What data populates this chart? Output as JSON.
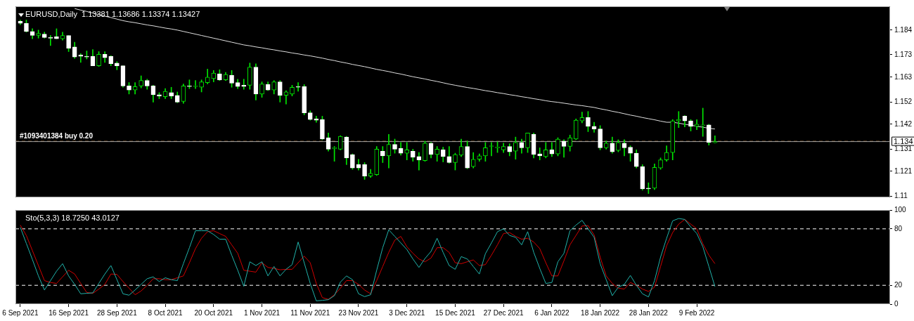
{
  "chart_data": [
    {
      "type": "candlestick",
      "title": "EURUSD,Daily  1.13381 1.13686 1.13374 1.13427",
      "tick_labels": "y",
      "categories": [
        null,
        null,
        null,
        null,
        null,
        null,
        null,
        null,
        null,
        null,
        null,
        null,
        null,
        null,
        null,
        null,
        null,
        null,
        null,
        null,
        null,
        null,
        null,
        null,
        null,
        null,
        null,
        null,
        null,
        null,
        null,
        null,
        null,
        null,
        null,
        null,
        null,
        null,
        null,
        null,
        null,
        null,
        null,
        null,
        null,
        null,
        null,
        null,
        null,
        null,
        null,
        null,
        null,
        null,
        null,
        null,
        null,
        null,
        null,
        null,
        null,
        null,
        null,
        null,
        null,
        null,
        null,
        null,
        null,
        null,
        null,
        null,
        null,
        null,
        null,
        null,
        null,
        null,
        null,
        null,
        null,
        null,
        null,
        null,
        null,
        null,
        null,
        null,
        null,
        null,
        null,
        null,
        null,
        null,
        null,
        null,
        null,
        null,
        null,
        null,
        null,
        null,
        null,
        null,
        null,
        null,
        null,
        null,
        null,
        null,
        null,
        null,
        null,
        null,
        null,
        null
      ],
      "ylim": [
        1.1094,
        1.1946
      ],
      "yticks": [
        1.184,
        1.173,
        1.163,
        1.152,
        1.142,
        1.131,
        1.121,
        1.11
      ],
      "series": [
        {
          "type": "candlestick",
          "color": "#00e600",
          "colors": [
            "#ffffff",
            "#ffffff",
            "#ffffff",
            "#00e600",
            "#ffffff",
            "#ffffff",
            "#ffffff",
            "#00e600",
            "#ffffff",
            "#ffffff",
            "#ffffff",
            "#ffffff",
            "#ffffff",
            "#00e600",
            "#ffffff",
            "#ffffff",
            "#ffffff",
            "#ffffff",
            "#ffffff",
            "#00e600",
            "#00e600",
            "#ffffff",
            "#ffffff",
            "#ffffff",
            "#00e600",
            "#ffffff",
            "#ffffff",
            "#00e600",
            "#ffffff",
            "#00e600",
            "#00e600",
            "#00e600",
            "#00e600",
            "#ffffff",
            "#00e600",
            "#ffffff",
            "#ffffff",
            "#ffffff",
            "#00e600",
            "#ffffff",
            "#00e600",
            "#ffffff",
            "#00e600",
            "#ffffff",
            "#00e600",
            "#00e600",
            "#ffffff",
            "#ffffff",
            "#ffffff",
            "#ffffff",
            "#ffffff",
            "#ffffff",
            "#00e600",
            "#00e600",
            "#ffffff",
            "#ffffff",
            "#ffffff",
            "#ffffff",
            "#00e600",
            "#00e600",
            "#ffffff",
            "#00e600",
            "#ffffff",
            "#ffffff",
            "#00e600",
            "#ffffff",
            "#ffffff",
            "#00e600",
            "#ffffff",
            "#00e600",
            "#ffffff",
            "#ffffff",
            "#00e600",
            "#00e600",
            "#ffffff",
            "#00e600",
            "#00e600",
            "#00e600",
            "#00e600",
            "#00e600",
            "#00e600",
            "#ffffff",
            "#00e600",
            "#ffffff",
            "#00e600",
            "#ffffff",
            "#ffffff",
            "#00e600",
            "#ffffff",
            "#00e600",
            "#ffffff",
            "#00e600",
            "#00e600",
            "#00e600",
            "#ffffff",
            "#ffffff",
            "#ffffff",
            "#00e600",
            "#ffffff",
            "#00e600",
            "#ffffff",
            "#ffffff",
            "#ffffff",
            "#ffffff",
            "#ffffff",
            "#00e600",
            "#00e600",
            "#00e600",
            "#00e600",
            "#00e600",
            "#ffffff",
            "#ffffff",
            "#00e600",
            "#00e600",
            "#ffffff",
            "#00e600"
          ],
          "ohlc": [
            [
              1.1879,
              1.1885,
              1.1864,
              1.187
            ],
            [
              1.187,
              1.1885,
              1.1831,
              1.1834
            ],
            [
              1.1834,
              1.1846,
              1.1801,
              1.1816
            ],
            [
              1.1816,
              1.184,
              1.1804,
              1.1825
            ],
            [
              1.1822,
              1.1831,
              1.1804,
              1.1807
            ],
            [
              1.1807,
              1.1816,
              1.1771,
              1.1804
            ],
            [
              1.181,
              1.1846,
              1.1801,
              1.1801
            ],
            [
              1.1801,
              1.1831,
              1.1795,
              1.1816
            ],
            [
              1.1816,
              1.1816,
              1.1744,
              1.1759
            ],
            [
              1.1765,
              1.1786,
              1.1714,
              1.172
            ],
            [
              1.1729,
              1.1735,
              1.1696,
              1.1723
            ],
            [
              1.1723,
              1.1747,
              1.1711,
              1.172
            ],
            [
              1.1723,
              1.1753,
              1.1681,
              1.1681
            ],
            [
              1.1681,
              1.1744,
              1.1678,
              1.1732
            ],
            [
              1.1732,
              1.1744,
              1.1696,
              1.1717
            ],
            [
              1.1723,
              1.1726,
              1.1681,
              1.169
            ],
            [
              1.1693,
              1.1699,
              1.1663,
              1.1681
            ],
            [
              1.1681,
              1.1681,
              1.1585,
              1.1591
            ],
            [
              1.1591,
              1.1606,
              1.1555,
              1.1573
            ],
            [
              1.1573,
              1.1606,
              1.1555,
              1.1588
            ],
            [
              1.1591,
              1.1636,
              1.1582,
              1.1615
            ],
            [
              1.1615,
              1.1621,
              1.1576,
              1.1591
            ],
            [
              1.1591,
              1.1594,
              1.1519,
              1.1552
            ],
            [
              1.1552,
              1.1561,
              1.1534,
              1.1546
            ],
            [
              1.1543,
              1.1579,
              1.1534,
              1.1567
            ],
            [
              1.1561,
              1.1585,
              1.1534,
              1.1546
            ],
            [
              1.1549,
              1.1564,
              1.1516,
              1.1519
            ],
            [
              1.1522,
              1.16,
              1.1513,
              1.1591
            ],
            [
              1.1591,
              1.1618,
              1.1579,
              1.1588
            ],
            [
              1.1588,
              1.1615,
              1.1579,
              1.1591
            ],
            [
              1.1585,
              1.1618,
              1.1564,
              1.1609
            ],
            [
              1.1606,
              1.1666,
              1.16,
              1.163
            ],
            [
              1.1624,
              1.166,
              1.1609,
              1.1648
            ],
            [
              1.1645,
              1.1663,
              1.1615,
              1.1618
            ],
            [
              1.1618,
              1.1651,
              1.1615,
              1.1642
            ],
            [
              1.1639,
              1.166,
              1.1585,
              1.1603
            ],
            [
              1.1606,
              1.1621,
              1.1579,
              1.1588
            ],
            [
              1.1594,
              1.1621,
              1.1576,
              1.1588
            ],
            [
              1.1594,
              1.1693,
              1.1576,
              1.1675
            ],
            [
              1.1675,
              1.169,
              1.1528,
              1.1555
            ],
            [
              1.1555,
              1.1609,
              1.154,
              1.16
            ],
            [
              1.1597,
              1.1609,
              1.157,
              1.1573
            ],
            [
              1.1573,
              1.1615,
              1.1555,
              1.1609
            ],
            [
              1.1609,
              1.1615,
              1.1519,
              1.1549
            ],
            [
              1.1549,
              1.157,
              1.151,
              1.1564
            ],
            [
              1.1555,
              1.1594,
              1.1546,
              1.1585
            ],
            [
              1.1588,
              1.1606,
              1.1567,
              1.1585
            ],
            [
              1.1588,
              1.1597,
              1.1462,
              1.1471
            ],
            [
              1.1471,
              1.148,
              1.1438,
              1.1441
            ],
            [
              1.1444,
              1.1456,
              1.1429,
              1.1438
            ],
            [
              1.1441,
              1.1456,
              1.1351,
              1.1354
            ],
            [
              1.136,
              1.1381,
              1.13,
              1.1309
            ],
            [
              1.1312,
              1.1321,
              1.1255,
              1.1312
            ],
            [
              1.1309,
              1.1369,
              1.1306,
              1.1366
            ],
            [
              1.1363,
              1.1366,
              1.124,
              1.127
            ],
            [
              1.1285,
              1.1288,
              1.1219,
              1.1225
            ],
            [
              1.124,
              1.1264,
              1.1216,
              1.1225
            ],
            [
              1.124,
              1.1249,
              1.1174,
              1.1189
            ],
            [
              1.1189,
              1.1219,
              1.1183,
              1.1201
            ],
            [
              1.1195,
              1.1321,
              1.1192,
              1.1309
            ],
            [
              1.13,
              1.1321,
              1.1249,
              1.1279
            ],
            [
              1.1279,
              1.1375,
              1.1225,
              1.133
            ],
            [
              1.133,
              1.1354,
              1.1291,
              1.1309
            ],
            [
              1.1312,
              1.1339,
              1.1282,
              1.1291
            ],
            [
              1.1291,
              1.1339,
              1.1261,
              1.1306
            ],
            [
              1.13,
              1.1309,
              1.1255,
              1.1273
            ],
            [
              1.1276,
              1.1294,
              1.1216,
              1.1261
            ],
            [
              1.1258,
              1.1345,
              1.1255,
              1.1336
            ],
            [
              1.1336,
              1.1339,
              1.127,
              1.1285
            ],
            [
              1.1285,
              1.1321,
              1.1255,
              1.1309
            ],
            [
              1.1306,
              1.1318,
              1.1252,
              1.1276
            ],
            [
              1.1276,
              1.1321,
              1.1246,
              1.1249
            ],
            [
              1.1249,
              1.1291,
              1.1216,
              1.1285
            ],
            [
              1.1282,
              1.1354,
              1.1276,
              1.1321
            ],
            [
              1.1321,
              1.1345,
              1.1222,
              1.1225
            ],
            [
              1.1231,
              1.1294,
              1.1225,
              1.1264
            ],
            [
              1.1264,
              1.1288,
              1.1255,
              1.1279
            ],
            [
              1.1279,
              1.1339,
              1.1255,
              1.1315
            ],
            [
              1.1321,
              1.1339,
              1.1279,
              1.1321
            ],
            [
              1.1315,
              1.1342,
              1.1294,
              1.1318
            ],
            [
              1.1306,
              1.1336,
              1.1294,
              1.1321
            ],
            [
              1.1321,
              1.1333,
              1.1279,
              1.1297
            ],
            [
              1.13,
              1.1363,
              1.1264,
              1.1339
            ],
            [
              1.1339,
              1.1354,
              1.1291,
              1.1315
            ],
            [
              1.1315,
              1.1381,
              1.1294,
              1.1381
            ],
            [
              1.1375,
              1.1381,
              1.127,
              1.1285
            ],
            [
              1.1288,
              1.1315,
              1.1261,
              1.1279
            ],
            [
              1.1276,
              1.1339,
              1.127,
              1.1306
            ],
            [
              1.1306,
              1.1339,
              1.1276,
              1.1288
            ],
            [
              1.1288,
              1.136,
              1.1279,
              1.1354
            ],
            [
              1.1345,
              1.1351,
              1.1273,
              1.1321
            ],
            [
              1.1321,
              1.1372,
              1.13,
              1.136
            ],
            [
              1.1354,
              1.1444,
              1.1351,
              1.1438
            ],
            [
              1.1435,
              1.1474,
              1.1426,
              1.145
            ],
            [
              1.145,
              1.1477,
              1.1387,
              1.1411
            ],
            [
              1.1411,
              1.1429,
              1.1384,
              1.1399
            ],
            [
              1.1399,
              1.1414,
              1.1306,
              1.1315
            ],
            [
              1.1315,
              1.1345,
              1.1309,
              1.1336
            ],
            [
              1.1336,
              1.1363,
              1.1291,
              1.1297
            ],
            [
              1.1303,
              1.1351,
              1.1297,
              1.1339
            ],
            [
              1.1336,
              1.1351,
              1.1279,
              1.1315
            ],
            [
              1.1318,
              1.1324,
              1.1255,
              1.1291
            ],
            [
              1.1291,
              1.1306,
              1.1225,
              1.1231
            ],
            [
              1.1231,
              1.124,
              1.1126,
              1.1132
            ],
            [
              1.1135,
              1.1159,
              1.1111,
              1.1132
            ],
            [
              1.1135,
              1.1243,
              1.1129,
              1.1228
            ],
            [
              1.1225,
              1.127,
              1.1219,
              1.1261
            ],
            [
              1.1261,
              1.1324,
              1.1255,
              1.1294
            ],
            [
              1.1294,
              1.1441,
              1.1261,
              1.1435
            ],
            [
              1.1435,
              1.1477,
              1.1405,
              1.1441
            ],
            [
              1.1456,
              1.1459,
              1.1408,
              1.1435
            ],
            [
              1.1435,
              1.1441,
              1.139,
              1.1411
            ],
            [
              1.1411,
              1.1441,
              1.1396,
              1.142
            ],
            [
              1.1414,
              1.1492,
              1.1366,
              1.1414
            ],
            [
              1.1417,
              1.142,
              1.1327,
              1.1339
            ],
            [
              1.13381,
              1.13686,
              1.13374,
              1.13427
            ]
          ]
        },
        {
          "type": "line",
          "color": "#e0e0e0",
          "values": [
            null,
            null,
            null,
            null,
            null,
            null,
            null,
            null,
            null,
            1.1936,
            1.1929,
            1.1923,
            1.1916,
            1.1909,
            1.1902,
            1.1896,
            1.1889,
            1.1882,
            1.1877,
            1.1873,
            1.1868,
            1.1863,
            1.1859,
            1.1854,
            1.1849,
            1.1845,
            1.184,
            1.1834,
            1.1828,
            1.1822,
            1.1816,
            1.181,
            1.1804,
            1.1798,
            1.1792,
            1.1786,
            1.178,
            1.1774,
            1.177,
            1.1765,
            1.1761,
            1.1756,
            1.1752,
            1.1747,
            1.1743,
            1.1738,
            1.1734,
            1.1729,
            1.1725,
            1.172,
            1.1715,
            1.1709,
            1.1704,
            1.1698,
            1.1693,
            1.1687,
            1.1682,
            1.1677,
            1.1671,
            1.1665,
            1.166,
            1.1655,
            1.1649,
            1.1644,
            1.1638,
            1.1632,
            1.1627,
            1.1622,
            1.1616,
            1.1611,
            1.1605,
            1.1599,
            1.1594,
            1.1589,
            1.1584,
            1.158,
            1.1575,
            1.157,
            1.1566,
            1.1561,
            1.1557,
            1.1552,
            1.1548,
            1.1543,
            1.1539,
            1.1534,
            1.153,
            1.1525,
            1.1521,
            1.1518,
            1.1514,
            1.151,
            1.1506,
            1.1503,
            1.1499,
            1.1495,
            1.1489,
            1.1484,
            1.1478,
            1.1473,
            1.1467,
            1.1461,
            1.1456,
            1.145,
            1.1445,
            1.144,
            1.1434,
            1.1429,
            1.1429,
            1.1425,
            1.142,
            1.1416,
            1.1411,
            1.1407,
            1.1402,
            1.1399
          ]
        }
      ],
      "ref_lines": [
        {
          "axis": "y",
          "value": 1.1344,
          "label": "#1093401384 buy 0.20",
          "color": "#c08040",
          "line_style": "dashed"
        },
        {
          "axis": "y",
          "value": 1.13427,
          "label": "1.134",
          "color": "#a0a0a0",
          "line_style": "solid"
        }
      ]
    },
    {
      "type": "line",
      "title": "Sto(5,3,3) 18.7250 43.0127",
      "categories": [
        "6 Sep 2021",
        null,
        null,
        null,
        null,
        null,
        null,
        null,
        "16 Sep 2021",
        null,
        null,
        null,
        null,
        null,
        null,
        null,
        "28 Sep 2021",
        null,
        null,
        null,
        null,
        null,
        null,
        null,
        "8 Oct 2021",
        null,
        null,
        null,
        null,
        null,
        null,
        null,
        "20 Oct 2021",
        null,
        null,
        null,
        null,
        null,
        null,
        null,
        "1 Nov 2021",
        null,
        null,
        null,
        null,
        null,
        null,
        null,
        "11 Nov 2021",
        null,
        null,
        null,
        null,
        null,
        null,
        null,
        "23 Nov 2021",
        null,
        null,
        null,
        null,
        null,
        null,
        null,
        "3 Dec 2021",
        null,
        null,
        null,
        null,
        null,
        null,
        null,
        "15 Dec 2021",
        null,
        null,
        null,
        null,
        null,
        null,
        null,
        "27 Dec 2021",
        null,
        null,
        null,
        null,
        null,
        null,
        null,
        "6 Jan 2022",
        null,
        null,
        null,
        null,
        null,
        null,
        null,
        "18 Jan 2022",
        null,
        null,
        null,
        null,
        null,
        null,
        null,
        "28 Jan 2022",
        null,
        null,
        null,
        null,
        null,
        null,
        null,
        "9 Feb 2022",
        null,
        null,
        null
      ],
      "ylim": [
        0,
        100
      ],
      "yticks": [
        0,
        20,
        80,
        100
      ],
      "series": [
        {
          "color": "#20b2aa",
          "values": [
            81.6,
            64.5,
            47.5,
            30,
            15,
            25,
            35,
            43,
            30,
            21,
            11,
            11.5,
            12,
            22,
            32,
            41,
            26,
            11,
            9.5,
            15,
            21,
            27,
            29,
            24,
            28,
            26,
            25,
            43,
            60,
            78,
            78,
            78,
            74,
            69,
            69,
            52,
            36,
            19,
            45,
            41,
            45,
            30,
            40,
            30,
            37,
            42,
            66,
            44,
            22,
            3.5,
            4,
            4.7,
            9,
            23.5,
            30,
            26,
            11,
            8,
            10,
            36,
            60,
            79,
            72,
            65,
            58,
            48,
            39,
            48.5,
            56,
            70,
            55,
            41,
            37,
            50.5,
            48,
            40,
            32,
            53.6,
            65,
            77,
            80,
            73,
            71,
            63,
            77,
            55,
            38,
            22,
            23,
            45,
            54,
            78,
            84,
            89,
            80,
            71,
            43,
            26,
            9,
            18,
            21,
            30.5,
            20,
            11,
            7.7,
            25,
            50,
            70,
            88.5,
            91,
            90,
            82,
            75,
            61,
            40,
            18.7
          ]
        },
        {
          "color": "#d00000",
          "values": [
            84,
            73,
            57,
            41,
            25,
            23,
            22,
            29,
            36,
            32,
            22,
            12.4,
            11.5,
            16,
            21,
            32,
            31.6,
            24,
            17,
            10,
            14,
            20,
            27,
            27,
            26,
            26,
            28,
            30,
            44,
            59,
            70,
            77,
            78,
            75,
            72,
            63,
            54,
            36,
            35,
            34,
            44,
            39,
            38,
            36.5,
            37,
            37,
            44,
            51,
            44,
            22,
            7,
            5,
            10,
            17,
            25,
            25,
            21,
            15,
            11,
            25,
            40,
            55,
            68,
            72,
            61,
            54,
            48,
            45,
            49,
            60,
            60,
            55,
            44,
            43,
            45,
            47,
            41,
            42,
            52,
            63,
            75,
            76,
            72,
            69,
            70,
            66,
            59,
            44,
            30,
            30,
            46,
            63,
            73,
            83,
            83.5,
            73.5,
            50,
            30,
            22,
            17,
            16,
            23,
            20,
            16,
            13.5,
            18,
            40,
            62,
            76,
            85,
            90,
            85,
            80,
            64,
            52,
            43
          ]
        }
      ],
      "ref_lines": [
        {
          "axis": "y",
          "value": 80,
          "color": "#ffffff",
          "line_style": "dashed"
        },
        {
          "axis": "y",
          "value": 20,
          "color": "#ffffff",
          "line_style": "dashed"
        }
      ]
    }
  ]
}
